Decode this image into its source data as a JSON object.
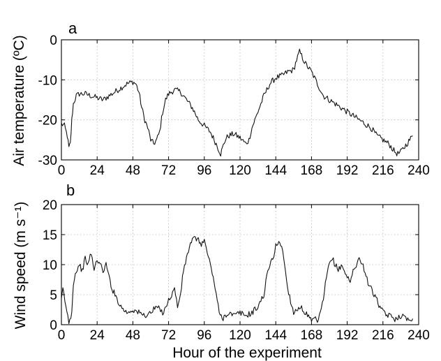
{
  "chart_data": [
    {
      "panel": "a",
      "type": "line",
      "xlabel": "",
      "ylabel": "Air temperature (ºC)",
      "xlim": [
        0,
        240
      ],
      "ylim": [
        -30,
        0
      ],
      "xticks": [
        "0",
        "24",
        "48",
        "72",
        "96",
        "120",
        "144",
        "168",
        "192",
        "216",
        "240"
      ],
      "yticks": [
        "0",
        "-10",
        "-20",
        "-30"
      ],
      "grid": true,
      "series": [
        {
          "x": [
            0,
            2,
            4,
            5,
            6,
            7,
            8,
            10,
            12,
            16,
            20,
            24,
            28,
            32,
            36,
            40,
            44,
            48,
            50,
            52,
            54,
            56,
            58,
            60,
            62,
            64,
            66,
            68,
            70,
            72,
            76,
            80,
            84,
            88,
            92,
            96,
            100,
            104,
            107,
            110,
            112,
            116,
            120,
            124,
            126,
            128,
            132,
            136,
            140,
            144,
            148,
            152,
            156,
            158,
            160,
            162,
            164,
            166,
            168,
            172,
            176,
            180,
            184,
            188,
            192,
            196,
            200,
            204,
            208,
            212,
            216,
            220,
            224,
            226,
            228,
            230,
            232,
            234,
            236
          ],
          "y": [
            -21,
            -21.5,
            -24,
            -27,
            -26,
            -20,
            -16,
            -14,
            -13.5,
            -13.5,
            -14,
            -14.5,
            -15,
            -14,
            -13,
            -12,
            -11,
            -10.5,
            -11,
            -13,
            -17,
            -20,
            -22,
            -25,
            -26,
            -25,
            -23,
            -18,
            -15,
            -13.5,
            -12.5,
            -13,
            -15,
            -17,
            -20,
            -21.5,
            -23,
            -26,
            -28.5,
            -25,
            -24,
            -23.5,
            -24.5,
            -26,
            -25,
            -22,
            -18,
            -14,
            -11,
            -9.5,
            -9,
            -8,
            -7.5,
            -5,
            -3,
            -4.5,
            -6,
            -7,
            -8,
            -11,
            -14,
            -15,
            -16,
            -17,
            -18,
            -19,
            -20,
            -21,
            -22,
            -24,
            -25,
            -26,
            -28,
            -28.5,
            -28,
            -27,
            -26,
            -25,
            -24
          ]
        }
      ]
    },
    {
      "panel": "b",
      "type": "line",
      "xlabel": "Hour of the experiment",
      "ylabel": "Wind speed (m s⁻¹)",
      "xlim": [
        0,
        240
      ],
      "ylim": [
        0,
        20
      ],
      "xticks": [
        "0",
        "24",
        "48",
        "72",
        "96",
        "120",
        "144",
        "168",
        "192",
        "216",
        "240"
      ],
      "yticks": [
        "20",
        "15",
        "10",
        "5",
        "0"
      ],
      "grid": true,
      "series": [
        {
          "x": [
            0,
            1,
            3,
            5,
            7,
            8,
            10,
            12,
            14,
            16,
            18,
            20,
            22,
            24,
            26,
            28,
            30,
            32,
            34,
            36,
            38,
            40,
            44,
            48,
            52,
            56,
            60,
            64,
            68,
            70,
            72,
            74,
            76,
            78,
            80,
            82,
            84,
            86,
            88,
            90,
            92,
            94,
            96,
            98,
            100,
            102,
            104,
            106,
            108,
            112,
            116,
            120,
            124,
            128,
            132,
            136,
            138,
            140,
            142,
            144,
            146,
            148,
            150,
            152,
            156,
            160,
            164,
            168,
            170,
            172,
            174,
            176,
            178,
            180,
            182,
            184,
            186,
            188,
            190,
            192,
            194,
            196,
            198,
            200,
            202,
            204,
            206,
            208,
            210,
            212,
            214,
            216,
            220,
            224,
            228,
            232,
            236
          ],
          "y": [
            4,
            6,
            3,
            0.5,
            2,
            7,
            9,
            10,
            9,
            11,
            10,
            12,
            9,
            11,
            10,
            9,
            10,
            8,
            6,
            5,
            4,
            3,
            2,
            2.5,
            2,
            1.5,
            2,
            3,
            2,
            3,
            4,
            5,
            6,
            3,
            5,
            9,
            11,
            13,
            14,
            14.5,
            14,
            13.5,
            14,
            12,
            10,
            8,
            5,
            2,
            1,
            2,
            1.5,
            2,
            1.5,
            2,
            3,
            5,
            8,
            10,
            11,
            13,
            14,
            13,
            10,
            6,
            2,
            3,
            2,
            0.5,
            1,
            0.5,
            2,
            4,
            8,
            10,
            11,
            10,
            9,
            10,
            9,
            8,
            7,
            9,
            10,
            11,
            10,
            9,
            7,
            6,
            5,
            4,
            3,
            2,
            1.5,
            1,
            1.5,
            1,
            1
          ]
        }
      ]
    }
  ]
}
